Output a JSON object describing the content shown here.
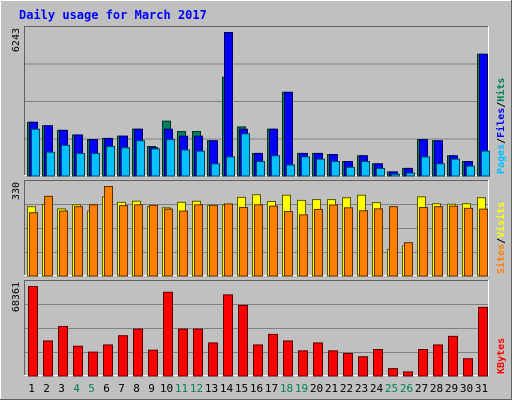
{
  "chart_data": {
    "type": "bar",
    "title": "Daily usage for March 2017",
    "categories": [
      "1",
      "2",
      "3",
      "4",
      "5",
      "6",
      "7",
      "8",
      "9",
      "10",
      "11",
      "12",
      "13",
      "14",
      "15",
      "16",
      "17",
      "18",
      "19",
      "20",
      "21",
      "22",
      "23",
      "24",
      "25",
      "26",
      "27",
      "28",
      "29",
      "30",
      "31"
    ],
    "weekend_days": [
      "4",
      "5",
      "11",
      "12",
      "18",
      "19",
      "25",
      "26"
    ],
    "panels": [
      {
        "key": "top",
        "max_label": "6243",
        "ymax": 6243,
        "right_labels": [
          "Pages",
          "Files",
          "Hits"
        ],
        "series": [
          {
            "name": "Hits",
            "color": "#00805c",
            "values": [
              2350,
              2200,
              2000,
              1800,
              1600,
              1650,
              1750,
              2050,
              1300,
              2400,
              1950,
              1950,
              1550,
              4300,
              2150,
              1000,
              2050,
              3650,
              1000,
              1000,
              950,
              650,
              900,
              550,
              200,
              350,
              1600,
              1550,
              900,
              650,
              5300
            ]
          },
          {
            "name": "Files",
            "color": "#0000ff",
            "values": [
              2350,
              2200,
              2000,
              1800,
              1600,
              1650,
              1750,
              2050,
              1250,
              2050,
              1750,
              1750,
              1550,
              6243,
              2050,
              1000,
              2050,
              3650,
              1000,
              1000,
              950,
              650,
              900,
              550,
              200,
              350,
              1600,
              1550,
              900,
              650,
              5300
            ]
          },
          {
            "name": "Pages",
            "color": "#00c0ff",
            "values": [
              2050,
              1050,
              1350,
              1000,
              1000,
              1300,
              1250,
              1550,
              1200,
              1600,
              1150,
              1100,
              550,
              850,
              1850,
              650,
              900,
              500,
              850,
              750,
              650,
              400,
              650,
              350,
              100,
              150,
              850,
              550,
              750,
              450,
              1100
            ]
          }
        ]
      },
      {
        "key": "middle",
        "max_label": "330",
        "ymax": 330,
        "right_labels": [
          "Sites",
          "Visits"
        ],
        "series": [
          {
            "name": "Visits",
            "color": "#ffff00",
            "values": [
              256,
              264,
              248,
              263,
              240,
              292,
              272,
              276,
              256,
              252,
              272,
              276,
              260,
              262,
              290,
              300,
              275,
              298,
              279,
              282,
              282,
              289,
              298,
              271,
              100,
              112,
              292,
              267,
              265,
              267,
              289
            ]
          },
          {
            "name": "Sites",
            "color": "#ff8000",
            "values": [
              234,
              294,
              240,
              256,
              263,
              330,
              260,
              263,
              261,
              247,
              240,
              263,
              261,
              266,
              253,
              263,
              258,
              238,
              226,
              246,
              262,
              252,
              241,
              248,
              256,
              124,
              253,
              256,
              258,
              250,
              247
            ]
          }
        ]
      },
      {
        "key": "bottom",
        "max_label": "68361",
        "ymax": 68361,
        "right_labels": [
          "KBytes"
        ],
        "series": [
          {
            "name": "KBytes",
            "color": "#ff0000",
            "values": [
              68361,
              27000,
              38000,
              23000,
              18500,
              24000,
              31000,
              36000,
              20000,
              64000,
              36000,
              36000,
              25500,
              62000,
              54000,
              24000,
              32000,
              27000,
              19500,
              25500,
              19500,
              17500,
              15000,
              20500,
              6000,
              3500,
              20500,
              24000,
              30500,
              13500,
              52500
            ]
          }
        ]
      }
    ]
  }
}
